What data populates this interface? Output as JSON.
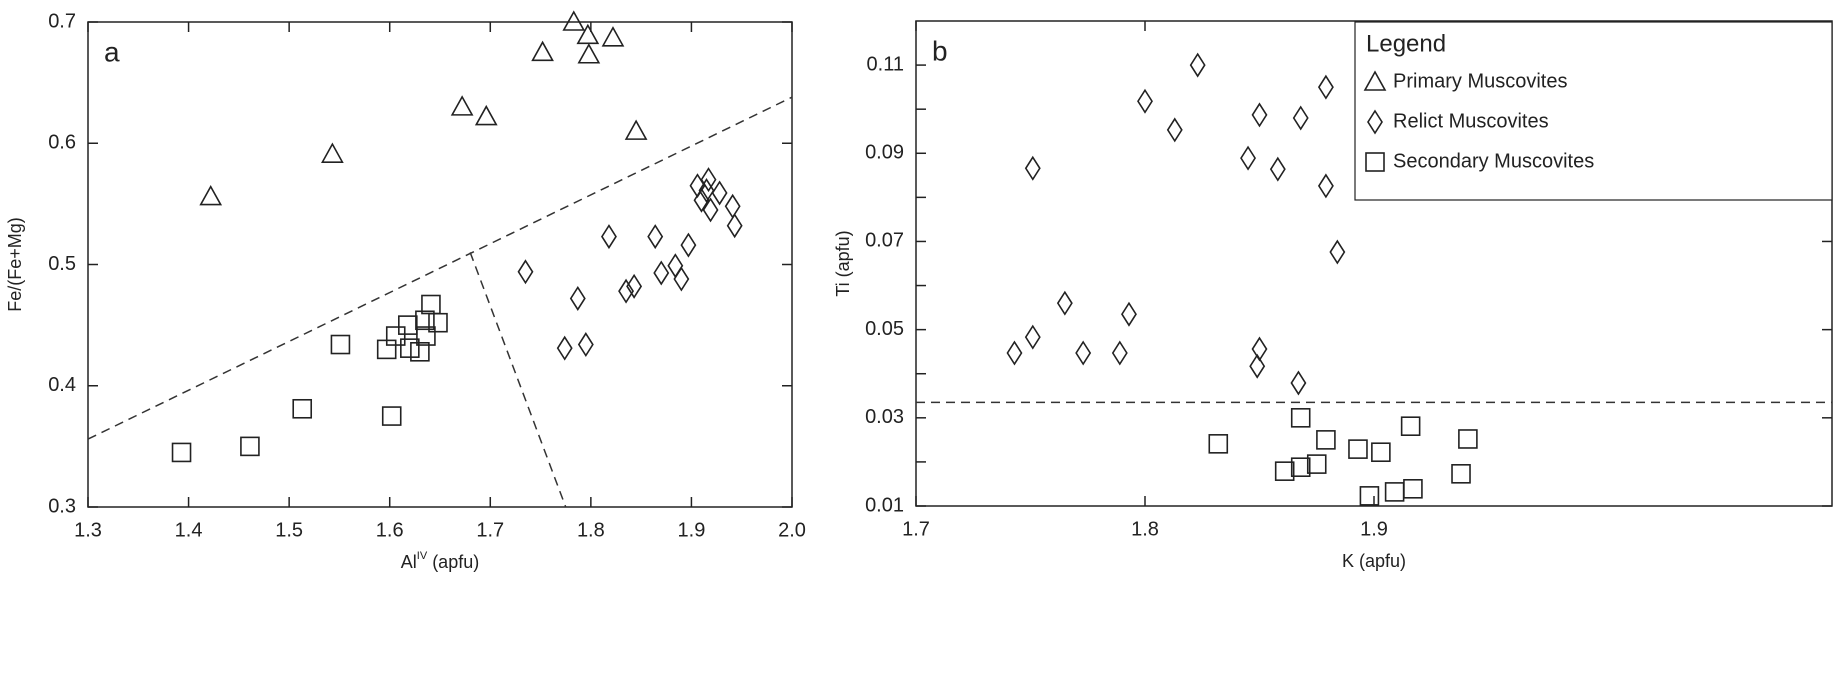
{
  "chart_data": [
    {
      "type": "scatter",
      "panel_label": "a",
      "ylabel": "Fe/(Fe+Mg)",
      "xlabel": {
        "base": "Al",
        "sup": "IV",
        "unit": "(apfu)"
      },
      "xlim": [
        1.3,
        2.0
      ],
      "ylim": [
        0.3,
        0.7
      ],
      "xticks": [
        1.3,
        1.4,
        1.5,
        1.6,
        1.7,
        1.8,
        1.9,
        {
          "value": 2.0,
          "label": "2.0"
        }
      ],
      "yticks": [
        0.3,
        0.4,
        0.5,
        0.6,
        0.7
      ],
      "series": [
        {
          "marker": "triangle",
          "color": "#222222",
          "x": [
            1.422,
            1.543,
            1.672,
            1.696,
            1.752,
            1.783,
            1.797,
            1.798,
            1.822,
            1.845
          ],
          "y": [
            0.556,
            0.591,
            0.63,
            0.622,
            0.675,
            0.7,
            0.689,
            0.673,
            0.687,
            0.61
          ]
        },
        {
          "marker": "diamond",
          "color": "#222222",
          "x": [
            1.735,
            1.787,
            1.795,
            1.774,
            1.818,
            1.835,
            1.843,
            1.864,
            1.87,
            1.884,
            1.89,
            1.897,
            1.906,
            1.91,
            1.915,
            1.917,
            1.919,
            1.928,
            1.941,
            1.943
          ],
          "y": [
            0.494,
            0.472,
            0.434,
            0.431,
            0.523,
            0.478,
            0.482,
            0.523,
            0.493,
            0.499,
            0.488,
            0.516,
            0.565,
            0.553,
            0.561,
            0.57,
            0.545,
            0.559,
            0.548,
            0.532
          ]
        },
        {
          "marker": "square",
          "color": "#222222",
          "x": [
            1.393,
            1.461,
            1.513,
            1.551,
            1.597,
            1.602,
            1.606,
            1.618,
            1.62,
            1.63,
            1.635,
            1.641,
            1.648,
            1.636
          ],
          "y": [
            0.345,
            0.35,
            0.381,
            0.434,
            0.43,
            0.375,
            0.441,
            0.45,
            0.431,
            0.428,
            0.454,
            0.467,
            0.452,
            0.441
          ]
        }
      ],
      "lines": [
        {
          "x": [
            1.3,
            2.0
          ],
          "y": [
            0.356,
            0.638
          ]
        },
        {
          "x": [
            1.68,
            1.775
          ],
          "y": [
            0.51,
            0.3
          ]
        }
      ]
    },
    {
      "type": "scatter",
      "panel_label": "b",
      "ylabel": "Ti (apfu)",
      "xlabel": "K (apfu)",
      "xlim": [
        1.7,
        2.1
      ],
      "ylim": [
        0.01,
        0.12
      ],
      "xticks": [
        1.7,
        1.8,
        1.9
      ],
      "yticks": [
        0.01,
        0.03,
        0.05,
        0.07,
        0.09,
        0.11
      ],
      "yminorticks": [
        0.02,
        0.04,
        0.06,
        0.08,
        0.1
      ],
      "legend_title": "Legend",
      "legend": "upper right",
      "series": [
        {
          "name": "Primary Muscovites",
          "marker": "triangle",
          "color": "#222222",
          "x": [],
          "y": []
        },
        {
          "name": "Relict Muscovites",
          "marker": "diamond",
          "color": "#222222",
          "x": [
            1.743,
            1.751,
            1.751,
            1.765,
            1.773,
            1.789,
            1.793,
            1.8,
            1.813,
            1.823,
            1.845,
            1.85,
            1.849,
            1.85,
            1.858,
            1.867,
            1.868,
            1.879,
            1.879,
            1.884
          ],
          "y": [
            0.0447,
            0.0483,
            0.0866,
            0.056,
            0.0447,
            0.0447,
            0.0535,
            0.1018,
            0.0953,
            0.11,
            0.0889,
            0.0987,
            0.0417,
            0.0456,
            0.0864,
            0.0379,
            0.098,
            0.105,
            0.0826,
            0.0676
          ]
        },
        {
          "name": "Secondary Muscovites",
          "marker": "square",
          "color": "#222222",
          "x": [
            1.832,
            1.861,
            1.868,
            1.868,
            1.875,
            1.879,
            1.893,
            1.898,
            1.903,
            1.909,
            1.916,
            1.917,
            1.938,
            1.941
          ],
          "y": [
            0.0241,
            0.0179,
            0.03,
            0.0188,
            0.0195,
            0.025,
            0.0229,
            0.0123,
            0.0222,
            0.0132,
            0.0281,
            0.0139,
            0.0173,
            0.0252
          ]
        }
      ],
      "lines": [
        {
          "x": [
            1.7,
            2.1
          ],
          "y": [
            0.0335,
            0.0335
          ]
        }
      ]
    }
  ]
}
